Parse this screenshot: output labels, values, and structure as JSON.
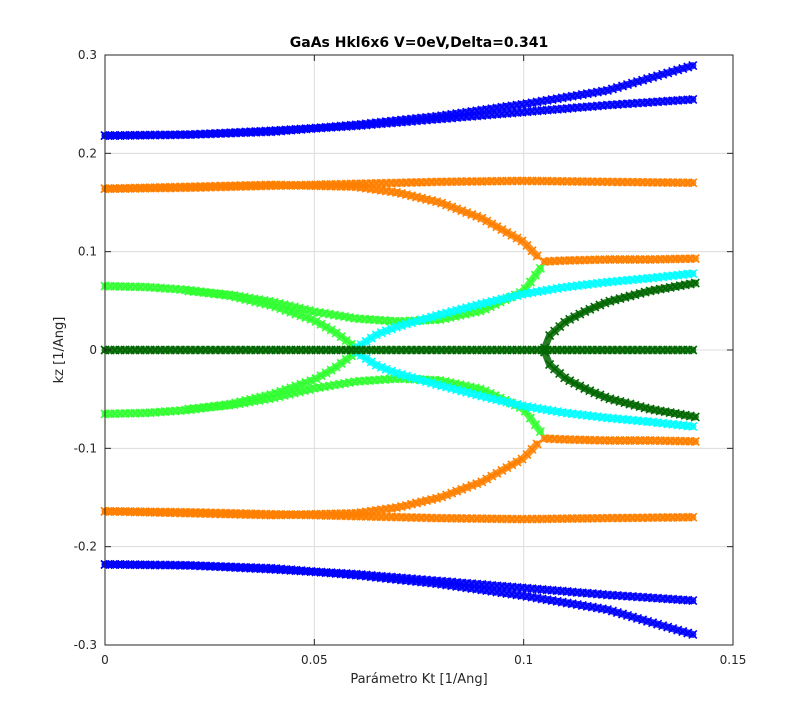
{
  "chart_data": {
    "type": "scatter",
    "title": "GaAs Hkl6x6 V=0eV,Delta=0.341",
    "xlabel": "Parámetro Kt [1/Ang]",
    "ylabel": "kz [1/Ang]",
    "xlim": [
      0,
      0.15
    ],
    "ylim": [
      -0.3,
      0.3
    ],
    "xticks": [
      0,
      0.05,
      0.1,
      0.15
    ],
    "xtick_labels": [
      "0",
      "0.05",
      "0.1",
      "0.15"
    ],
    "yticks": [
      -0.3,
      -0.2,
      -0.1,
      0,
      0.1,
      0.2,
      0.3
    ],
    "ytick_labels": [
      "-0.3",
      "-0.2",
      "-0.1",
      "0",
      "0.1",
      "0.2",
      "0.3"
    ],
    "grid": true,
    "marker": "x",
    "x_end": 0.141,
    "series": [
      {
        "color": "#0000ff",
        "x": [
          0,
          0.02,
          0.04,
          0.06,
          0.08,
          0.1,
          0.12,
          0.141
        ],
        "y": [
          0.218,
          0.219,
          0.222,
          0.229,
          0.238,
          0.25,
          0.264,
          0.29
        ]
      },
      {
        "color": "#0000ff",
        "x": [
          0,
          0.02,
          0.04,
          0.06,
          0.08,
          0.1,
          0.12,
          0.141
        ],
        "y": [
          0.218,
          0.219,
          0.223,
          0.228,
          0.235,
          0.242,
          0.249,
          0.255
        ]
      },
      {
        "color": "#0000ff",
        "x": [
          0,
          0.02,
          0.04,
          0.06,
          0.08,
          0.1,
          0.12,
          0.141
        ],
        "y": [
          -0.218,
          -0.219,
          -0.222,
          -0.229,
          -0.238,
          -0.25,
          -0.264,
          -0.29
        ]
      },
      {
        "color": "#0000ff",
        "x": [
          0,
          0.02,
          0.04,
          0.06,
          0.08,
          0.1,
          0.12,
          0.141
        ],
        "y": [
          -0.218,
          -0.219,
          -0.223,
          -0.228,
          -0.235,
          -0.242,
          -0.249,
          -0.255
        ]
      },
      {
        "color": "#ff8000",
        "x": [
          0,
          0.02,
          0.04,
          0.06,
          0.08,
          0.1,
          0.12,
          0.141
        ],
        "y": [
          0.164,
          0.165,
          0.167,
          0.169,
          0.171,
          0.172,
          0.171,
          0.17
        ]
      },
      {
        "color": "#ff8000",
        "x": [
          0,
          0.02,
          0.04,
          0.06,
          0.07,
          0.08,
          0.09,
          0.1,
          0.104
        ],
        "y": [
          0.164,
          0.166,
          0.168,
          0.166,
          0.16,
          0.15,
          0.134,
          0.11,
          0.092
        ]
      },
      {
        "color": "#ff8000",
        "x": [
          0.105,
          0.11,
          0.12,
          0.13,
          0.141
        ],
        "y": [
          0.09,
          0.091,
          0.092,
          0.092,
          0.093
        ]
      },
      {
        "color": "#ff8000",
        "x": [
          0,
          0.02,
          0.04,
          0.06,
          0.08,
          0.1,
          0.12,
          0.141
        ],
        "y": [
          -0.164,
          -0.165,
          -0.167,
          -0.169,
          -0.171,
          -0.172,
          -0.171,
          -0.17
        ]
      },
      {
        "color": "#ff8000",
        "x": [
          0,
          0.02,
          0.04,
          0.06,
          0.07,
          0.08,
          0.09,
          0.1,
          0.104
        ],
        "y": [
          -0.164,
          -0.166,
          -0.168,
          -0.166,
          -0.16,
          -0.15,
          -0.134,
          -0.11,
          -0.092
        ]
      },
      {
        "color": "#ff8000",
        "x": [
          0.105,
          0.11,
          0.12,
          0.13,
          0.141
        ],
        "y": [
          -0.09,
          -0.091,
          -0.092,
          -0.092,
          -0.093
        ]
      },
      {
        "color": "#33ff33",
        "x": [
          0,
          0.01,
          0.02,
          0.03,
          0.04,
          0.05,
          0.055,
          0.06
        ],
        "y": [
          0.065,
          0.064,
          0.061,
          0.055,
          0.045,
          0.03,
          0.018,
          0.002
        ]
      },
      {
        "color": "#33ff33",
        "x": [
          0,
          0.01,
          0.02,
          0.03,
          0.04,
          0.05,
          0.055,
          0.06
        ],
        "y": [
          -0.065,
          -0.064,
          -0.061,
          -0.055,
          -0.045,
          -0.03,
          -0.018,
          -0.002
        ]
      },
      {
        "color": "#33ff33",
        "x": [
          0.02,
          0.03,
          0.04,
          0.05,
          0.06,
          0.07,
          0.08,
          0.09,
          0.1,
          0.104
        ],
        "y": [
          0.06,
          0.056,
          0.049,
          0.039,
          0.032,
          0.029,
          0.031,
          0.04,
          0.06,
          0.083
        ]
      },
      {
        "color": "#33ff33",
        "x": [
          0.02,
          0.03,
          0.04,
          0.05,
          0.06,
          0.07,
          0.08,
          0.09,
          0.1,
          0.104
        ],
        "y": [
          -0.06,
          -0.056,
          -0.049,
          -0.039,
          -0.032,
          -0.029,
          -0.031,
          -0.04,
          -0.06,
          -0.083
        ]
      },
      {
        "color": "#00ffff",
        "x": [
          0.06,
          0.065,
          0.07,
          0.08,
          0.09,
          0.1,
          0.11,
          0.12,
          0.13,
          0.141
        ],
        "y": [
          0.002,
          0.016,
          0.024,
          0.036,
          0.047,
          0.057,
          0.064,
          0.069,
          0.073,
          0.078
        ]
      },
      {
        "color": "#00ffff",
        "x": [
          0.06,
          0.065,
          0.07,
          0.08,
          0.09,
          0.1,
          0.11,
          0.12,
          0.13,
          0.141
        ],
        "y": [
          -0.002,
          -0.016,
          -0.024,
          -0.036,
          -0.047,
          -0.057,
          -0.064,
          -0.069,
          -0.073,
          -0.078
        ]
      },
      {
        "color": "#006600",
        "x": [
          0,
          0.02,
          0.04,
          0.06,
          0.08,
          0.1,
          0.12,
          0.141
        ],
        "y": [
          0,
          0,
          0,
          0,
          0,
          0,
          0,
          0
        ]
      },
      {
        "color": "#006600",
        "x": [
          0.105,
          0.106,
          0.11,
          0.115,
          0.12,
          0.13,
          0.141
        ],
        "y": [
          0.002,
          0.014,
          0.029,
          0.04,
          0.049,
          0.06,
          0.068
        ]
      },
      {
        "color": "#006600",
        "x": [
          0.105,
          0.106,
          0.11,
          0.115,
          0.12,
          0.13,
          0.141
        ],
        "y": [
          -0.002,
          -0.014,
          -0.029,
          -0.04,
          -0.049,
          -0.06,
          -0.068
        ]
      }
    ]
  }
}
